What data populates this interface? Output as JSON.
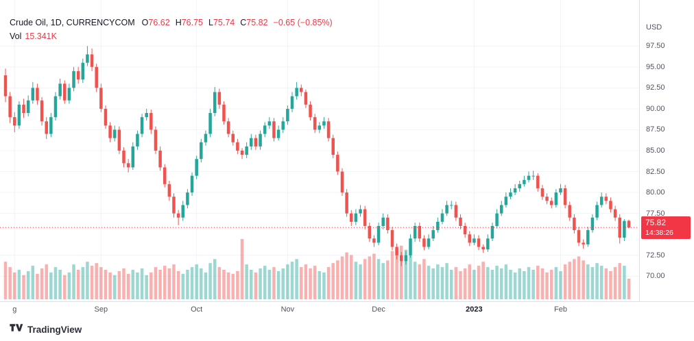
{
  "header": {
    "title": "Crude Oil, 1D, CURRENCYCOM",
    "symbol": "Crude Oil",
    "interval": "1D",
    "exchange": "CURRENCYCOM",
    "ohlc": [
      {
        "label": "O",
        "value": "76.62"
      },
      {
        "label": "H",
        "value": "76.75"
      },
      {
        "label": "L",
        "value": "75.74"
      },
      {
        "label": "C",
        "value": "75.82"
      }
    ],
    "change": "−0.65 (−0.85%)",
    "volume_label": "Vol",
    "volume_value": "15.341K"
  },
  "price_axis": {
    "currency": "USD",
    "ticks": [
      "97.50",
      "95.00",
      "92.50",
      "90.00",
      "87.50",
      "85.00",
      "82.50",
      "80.00",
      "77.50",
      "72.50",
      "70.00"
    ],
    "last_price": "75.82",
    "countdown": "14:38:26"
  },
  "time_axis": {
    "labels": [
      {
        "text": "g",
        "i": 2
      },
      {
        "text": "Sep",
        "i": 21
      },
      {
        "text": "Oct",
        "i": 42
      },
      {
        "text": "Nov",
        "i": 62
      },
      {
        "text": "Dec",
        "i": 82
      },
      {
        "text": "2023",
        "i": 103,
        "emphasis": true
      },
      {
        "text": "Feb",
        "i": 122
      }
    ]
  },
  "footer": {
    "brand": "TradingView"
  },
  "colors": {
    "up": "#26a69a",
    "down": "#ef5350",
    "vol_up": "rgba(38,166,154,0.45)",
    "vol_down": "rgba(239,83,80,0.45)",
    "grid": "#f0f3fa",
    "axis_text": "#50535e",
    "text": "#131722",
    "red_text": "#f23645",
    "badge": "#f23645"
  },
  "chart_data": {
    "type": "candlestick",
    "title": "Crude Oil, 1D, CURRENCYCOM",
    "ylabel": "USD",
    "ylim": [
      67,
      103
    ],
    "volume_axis_max": 225,
    "last": {
      "o": 76.62,
      "h": 76.75,
      "l": 75.74,
      "c": 75.82,
      "change": -0.65,
      "change_pct": -0.85,
      "volume": "15.341K"
    },
    "candles_format": [
      "open",
      "high",
      "low",
      "close",
      "volume_k"
    ],
    "candles": [
      [
        94.0,
        94.8,
        90.8,
        91.5,
        28
      ],
      [
        91.5,
        92.0,
        88.3,
        89.0,
        24
      ],
      [
        89.0,
        89.6,
        87.2,
        88.0,
        20
      ],
      [
        88.0,
        90.9,
        87.6,
        90.5,
        22
      ],
      [
        90.5,
        91.2,
        88.9,
        89.5,
        18
      ],
      [
        89.5,
        91.6,
        89.1,
        91.0,
        21
      ],
      [
        91.0,
        93.2,
        90.6,
        92.5,
        25
      ],
      [
        92.5,
        93.0,
        90.5,
        91.0,
        19
      ],
      [
        91.0,
        91.4,
        88.0,
        88.5,
        23
      ],
      [
        88.5,
        89.0,
        86.4,
        87.0,
        26
      ],
      [
        87.0,
        89.5,
        86.6,
        89.0,
        20
      ],
      [
        89.0,
        92.0,
        88.6,
        91.5,
        24
      ],
      [
        91.5,
        93.6,
        91.1,
        93.0,
        22
      ],
      [
        93.0,
        93.4,
        90.6,
        91.0,
        18
      ],
      [
        91.0,
        93.0,
        90.6,
        92.5,
        20
      ],
      [
        92.5,
        95.0,
        92.1,
        94.5,
        26
      ],
      [
        94.5,
        95.0,
        93.0,
        93.5,
        22
      ],
      [
        93.5,
        96.0,
        93.1,
        95.5,
        24
      ],
      [
        95.5,
        97.5,
        95.1,
        96.5,
        28
      ],
      [
        96.5,
        97.2,
        94.5,
        95.0,
        25
      ],
      [
        95.0,
        95.4,
        92.0,
        92.5,
        27
      ],
      [
        92.5,
        93.0,
        89.6,
        90.0,
        24
      ],
      [
        90.0,
        90.4,
        87.6,
        88.0,
        22
      ],
      [
        88.0,
        88.4,
        86.0,
        86.5,
        20
      ],
      [
        86.5,
        88.0,
        86.1,
        87.5,
        18
      ],
      [
        87.5,
        87.9,
        84.6,
        85.0,
        21
      ],
      [
        85.0,
        85.4,
        83.0,
        83.5,
        23
      ],
      [
        83.5,
        84.0,
        82.4,
        83.0,
        19
      ],
      [
        83.0,
        86.0,
        82.7,
        85.5,
        22
      ],
      [
        85.5,
        87.4,
        85.1,
        87.0,
        20
      ],
      [
        87.0,
        89.4,
        86.6,
        89.0,
        23
      ],
      [
        89.0,
        90.0,
        88.6,
        89.5,
        18
      ],
      [
        89.5,
        89.9,
        87.0,
        87.5,
        20
      ],
      [
        87.5,
        87.9,
        84.6,
        85.0,
        24
      ],
      [
        85.0,
        85.5,
        82.6,
        83.0,
        22
      ],
      [
        83.0,
        83.4,
        80.6,
        81.0,
        25
      ],
      [
        81.0,
        81.4,
        79.0,
        79.5,
        23
      ],
      [
        79.5,
        79.9,
        77.0,
        77.5,
        26
      ],
      [
        77.5,
        77.9,
        76.1,
        77.0,
        21
      ],
      [
        77.0,
        79.0,
        76.6,
        78.5,
        19
      ],
      [
        78.5,
        80.4,
        78.1,
        80.0,
        22
      ],
      [
        80.0,
        82.4,
        79.6,
        82.0,
        24
      ],
      [
        82.0,
        84.4,
        81.6,
        84.0,
        26
      ],
      [
        84.0,
        86.4,
        83.6,
        86.0,
        23
      ],
      [
        86.0,
        87.4,
        85.6,
        87.0,
        20
      ],
      [
        87.0,
        90.0,
        86.6,
        89.5,
        27
      ],
      [
        89.5,
        92.6,
        89.1,
        92.0,
        30
      ],
      [
        92.0,
        92.4,
        90.0,
        90.5,
        24
      ],
      [
        90.5,
        90.9,
        88.1,
        88.5,
        22
      ],
      [
        88.5,
        88.9,
        86.6,
        87.0,
        20
      ],
      [
        87.0,
        87.4,
        85.6,
        86.0,
        19
      ],
      [
        86.0,
        86.4,
        84.6,
        85.0,
        21
      ],
      [
        85.0,
        85.3,
        84.0,
        84.5,
        45
      ],
      [
        84.5,
        86.0,
        84.1,
        85.5,
        26
      ],
      [
        85.5,
        87.0,
        85.1,
        86.5,
        22
      ],
      [
        86.5,
        86.9,
        85.1,
        85.5,
        20
      ],
      [
        85.5,
        87.4,
        85.1,
        87.0,
        23
      ],
      [
        87.0,
        88.4,
        86.6,
        88.0,
        25
      ],
      [
        88.0,
        89.0,
        87.6,
        88.5,
        22
      ],
      [
        88.5,
        88.9,
        86.1,
        86.5,
        24
      ],
      [
        86.5,
        88.0,
        86.2,
        87.5,
        21
      ],
      [
        87.5,
        89.0,
        87.1,
        88.5,
        23
      ],
      [
        88.5,
        90.4,
        88.1,
        90.0,
        26
      ],
      [
        90.0,
        92.0,
        89.6,
        91.5,
        28
      ],
      [
        91.5,
        93.2,
        91.1,
        92.5,
        30
      ],
      [
        92.5,
        92.9,
        91.5,
        92.0,
        24
      ],
      [
        92.0,
        92.3,
        90.1,
        90.5,
        26
      ],
      [
        90.5,
        90.9,
        88.6,
        89.0,
        23
      ],
      [
        89.0,
        89.4,
        87.1,
        87.5,
        25
      ],
      [
        87.5,
        88.4,
        87.1,
        88.0,
        21
      ],
      [
        88.0,
        89.0,
        87.6,
        88.5,
        20
      ],
      [
        88.5,
        88.9,
        86.1,
        86.5,
        24
      ],
      [
        86.5,
        86.9,
        84.1,
        84.5,
        27
      ],
      [
        84.5,
        84.9,
        82.1,
        82.5,
        29
      ],
      [
        82.5,
        82.9,
        79.6,
        80.0,
        32
      ],
      [
        80.0,
        80.4,
        77.1,
        77.5,
        35
      ],
      [
        77.5,
        77.9,
        76.0,
        76.5,
        33
      ],
      [
        76.5,
        78.0,
        76.1,
        77.5,
        28
      ],
      [
        77.5,
        78.5,
        77.1,
        78.0,
        26
      ],
      [
        78.0,
        78.4,
        75.6,
        76.0,
        30
      ],
      [
        76.0,
        76.4,
        74.1,
        74.5,
        32
      ],
      [
        74.5,
        74.9,
        73.5,
        74.0,
        34
      ],
      [
        74.0,
        76.4,
        73.7,
        76.0,
        30
      ],
      [
        76.0,
        77.5,
        75.6,
        77.0,
        27
      ],
      [
        77.0,
        77.4,
        75.1,
        75.5,
        29
      ],
      [
        75.5,
        75.9,
        73.1,
        73.5,
        36
      ],
      [
        73.5,
        73.9,
        72.0,
        72.5,
        38
      ],
      [
        72.5,
        72.9,
        71.2,
        71.8,
        40
      ],
      [
        71.8,
        73.0,
        71.4,
        72.5,
        37
      ],
      [
        72.5,
        75.0,
        72.2,
        74.5,
        33
      ],
      [
        74.5,
        76.4,
        74.1,
        76.0,
        28
      ],
      [
        76.0,
        76.4,
        74.1,
        74.5,
        26
      ],
      [
        74.5,
        74.9,
        73.1,
        73.5,
        30
      ],
      [
        73.5,
        75.0,
        73.2,
        74.5,
        25
      ],
      [
        74.5,
        76.0,
        74.2,
        75.5,
        23
      ],
      [
        75.5,
        77.0,
        75.2,
        76.5,
        26
      ],
      [
        76.5,
        78.0,
        76.2,
        77.5,
        24
      ],
      [
        77.5,
        79.0,
        77.2,
        78.5,
        27
      ],
      [
        78.5,
        79.0,
        78.0,
        78.5,
        22
      ],
      [
        78.5,
        78.9,
        76.6,
        77.0,
        24
      ],
      [
        77.0,
        77.4,
        75.6,
        76.0,
        21
      ],
      [
        76.0,
        76.4,
        74.6,
        75.0,
        23
      ],
      [
        75.0,
        75.4,
        73.6,
        74.0,
        26
      ],
      [
        74.0,
        75.0,
        73.7,
        74.5,
        22
      ],
      [
        74.5,
        74.9,
        73.1,
        73.5,
        25
      ],
      [
        73.5,
        73.8,
        72.8,
        73.2,
        28
      ],
      [
        73.2,
        75.0,
        72.9,
        74.5,
        24
      ],
      [
        74.5,
        76.4,
        74.2,
        76.0,
        22
      ],
      [
        76.0,
        78.0,
        75.7,
        77.5,
        25
      ],
      [
        77.5,
        79.0,
        77.2,
        78.5,
        23
      ],
      [
        78.5,
        80.0,
        78.2,
        79.5,
        26
      ],
      [
        79.5,
        80.5,
        79.2,
        80.0,
        22
      ],
      [
        80.0,
        81.0,
        79.7,
        80.5,
        20
      ],
      [
        80.5,
        81.4,
        80.1,
        81.0,
        23
      ],
      [
        81.0,
        82.0,
        80.7,
        81.5,
        21
      ],
      [
        81.5,
        82.5,
        81.2,
        82.0,
        24
      ],
      [
        82.0,
        82.6,
        81.5,
        82.0,
        22
      ],
      [
        82.0,
        82.3,
        80.1,
        80.5,
        25
      ],
      [
        80.5,
        80.9,
        79.1,
        79.5,
        23
      ],
      [
        79.5,
        79.9,
        78.6,
        79.0,
        20
      ],
      [
        79.0,
        79.4,
        78.1,
        78.5,
        22
      ],
      [
        78.5,
        80.4,
        78.2,
        80.0,
        24
      ],
      [
        80.0,
        81.0,
        79.7,
        80.5,
        21
      ],
      [
        80.5,
        80.9,
        78.1,
        78.5,
        26
      ],
      [
        78.5,
        78.9,
        76.6,
        77.0,
        28
      ],
      [
        77.0,
        77.4,
        75.1,
        75.5,
        30
      ],
      [
        75.5,
        75.9,
        73.6,
        74.0,
        32
      ],
      [
        74.0,
        74.4,
        73.3,
        73.8,
        29
      ],
      [
        73.8,
        75.9,
        73.5,
        75.5,
        26
      ],
      [
        75.5,
        77.4,
        75.2,
        77.0,
        24
      ],
      [
        77.0,
        78.9,
        76.7,
        78.5,
        27
      ],
      [
        78.5,
        80.0,
        78.2,
        79.5,
        25
      ],
      [
        79.5,
        79.9,
        78.6,
        79.0,
        23
      ],
      [
        79.0,
        79.4,
        77.6,
        78.0,
        21
      ],
      [
        78.0,
        78.4,
        76.6,
        77.0,
        24
      ],
      [
        77.0,
        77.4,
        73.9,
        74.6,
        27
      ],
      [
        74.6,
        76.8,
        74.2,
        76.6,
        25
      ],
      [
        76.62,
        76.75,
        75.74,
        75.82,
        15.341
      ]
    ]
  }
}
